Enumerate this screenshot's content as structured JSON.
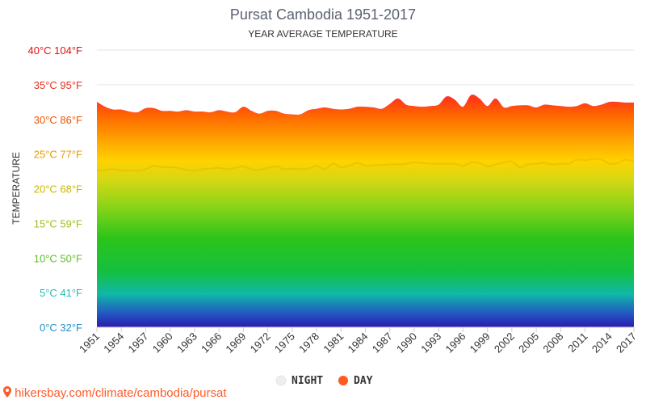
{
  "chart_data": {
    "type": "area",
    "title": "Pursat Cambodia 1951-2017",
    "subtitle": "YEAR AVERAGE TEMPERATURE",
    "ylabel": "TEMPERATURE",
    "ylim": [
      0,
      40
    ],
    "y_ticks": [
      {
        "value": 0,
        "label": "0°C 32°F",
        "color": "#1e90c8"
      },
      {
        "value": 5,
        "label": "5°C 41°F",
        "color": "#22bcb8"
      },
      {
        "value": 10,
        "label": "10°C 50°F",
        "color": "#5cc02a"
      },
      {
        "value": 15,
        "label": "15°C 59°F",
        "color": "#9cc21e"
      },
      {
        "value": 20,
        "label": "20°C 68°F",
        "color": "#c8b800"
      },
      {
        "value": 25,
        "label": "25°C 77°F",
        "color": "#e89a00"
      },
      {
        "value": 30,
        "label": "30°C 86°F",
        "color": "#ee5500"
      },
      {
        "value": 35,
        "label": "35°C 95°F",
        "color": "#e8301c"
      },
      {
        "value": 40,
        "label": "40°C 104°F",
        "color": "#e01010"
      }
    ],
    "x_ticks": [
      "1951",
      "1954",
      "1957",
      "1960",
      "1963",
      "1966",
      "1969",
      "1972",
      "1975",
      "1978",
      "1981",
      "1984",
      "1987",
      "1990",
      "1993",
      "1996",
      "1999",
      "2002",
      "2005",
      "2008",
      "2011",
      "2014",
      "2017"
    ],
    "grid": true,
    "legend_position": "bottom-center",
    "series": [
      {
        "name": "NIGHT",
        "color": "#eeeeee",
        "x": [
          1951,
          1952,
          1953,
          1954,
          1955,
          1956,
          1957,
          1958,
          1959,
          1960,
          1961,
          1962,
          1963,
          1964,
          1965,
          1966,
          1967,
          1968,
          1969,
          1970,
          1971,
          1972,
          1973,
          1974,
          1975,
          1976,
          1977,
          1978,
          1979,
          1980,
          1981,
          1982,
          1983,
          1984,
          1985,
          1986,
          1987,
          1988,
          1989,
          1990,
          1991,
          1992,
          1993,
          1994,
          1995,
          1996,
          1997,
          1998,
          1999,
          2000,
          2001,
          2002,
          2003,
          2004,
          2005,
          2006,
          2007,
          2008,
          2009,
          2010,
          2011,
          2012,
          2013,
          2014,
          2015,
          2016,
          2017
        ],
        "values": [
          22.6,
          22.7,
          22.8,
          22.6,
          22.6,
          22.6,
          22.8,
          23.3,
          23.1,
          23.1,
          23.0,
          22.7,
          22.6,
          22.8,
          22.9,
          23.0,
          22.8,
          23.0,
          23.2,
          22.8,
          22.7,
          23.0,
          23.2,
          22.8,
          22.9,
          22.8,
          22.9,
          23.3,
          22.8,
          23.6,
          23.1,
          23.3,
          23.7,
          23.3,
          23.4,
          23.4,
          23.5,
          23.5,
          23.6,
          23.8,
          23.7,
          23.6,
          23.6,
          23.6,
          23.6,
          23.3,
          23.8,
          23.7,
          23.2,
          23.5,
          23.8,
          23.9,
          23.1,
          23.5,
          23.6,
          23.7,
          23.5,
          23.6,
          23.6,
          24.2,
          24.1,
          24.3,
          24.2,
          23.6,
          23.7,
          24.2,
          23.9
        ]
      },
      {
        "name": "DAY",
        "color": "#ff5a1e",
        "x": [
          1951,
          1952,
          1953,
          1954,
          1955,
          1956,
          1957,
          1958,
          1959,
          1960,
          1961,
          1962,
          1963,
          1964,
          1965,
          1966,
          1967,
          1968,
          1969,
          1970,
          1971,
          1972,
          1973,
          1974,
          1975,
          1976,
          1977,
          1978,
          1979,
          1980,
          1981,
          1982,
          1983,
          1984,
          1985,
          1986,
          1987,
          1988,
          1989,
          1990,
          1991,
          1992,
          1993,
          1994,
          1995,
          1996,
          1997,
          1998,
          1999,
          2000,
          2001,
          2002,
          2003,
          2004,
          2005,
          2006,
          2007,
          2008,
          2009,
          2010,
          2011,
          2012,
          2013,
          2014,
          2015,
          2016,
          2017
        ],
        "values": [
          32.5,
          31.8,
          31.4,
          31.4,
          31.1,
          31.0,
          31.6,
          31.6,
          31.2,
          31.2,
          31.1,
          31.3,
          31.1,
          31.1,
          31.0,
          31.3,
          31.1,
          31.0,
          31.8,
          31.2,
          30.8,
          31.2,
          31.2,
          30.8,
          30.7,
          30.7,
          31.3,
          31.5,
          31.7,
          31.5,
          31.4,
          31.5,
          31.8,
          31.8,
          31.7,
          31.5,
          32.2,
          33.0,
          32.1,
          31.9,
          31.8,
          31.9,
          32.1,
          33.3,
          32.8,
          31.8,
          33.5,
          33.0,
          31.9,
          33.0,
          31.7,
          31.9,
          32.0,
          32.0,
          31.7,
          32.1,
          32.0,
          31.9,
          31.8,
          31.9,
          32.3,
          31.9,
          32.1,
          32.5,
          32.5,
          32.4,
          32.4
        ]
      }
    ]
  },
  "source": "hikersbay.com/climate/cambodia/pursat"
}
